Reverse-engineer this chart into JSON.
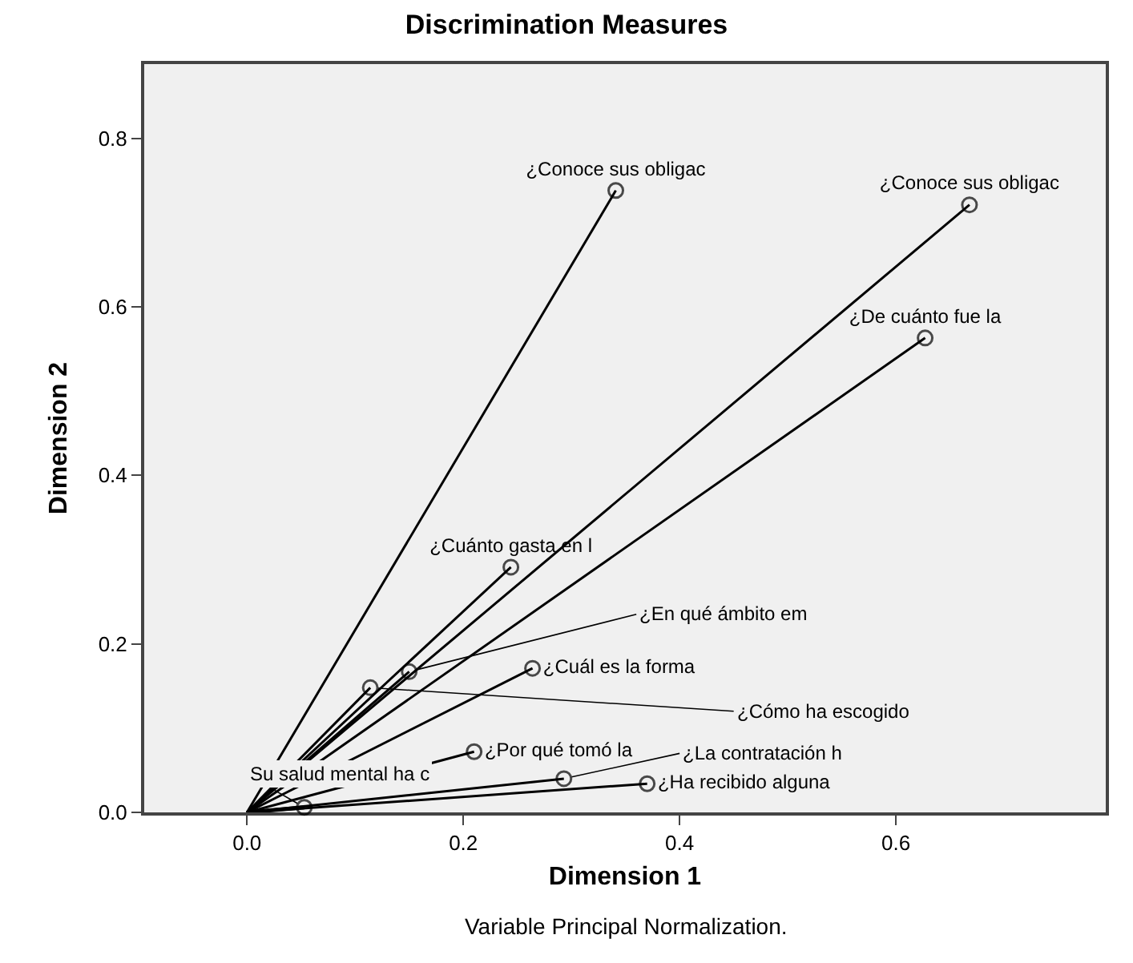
{
  "chart_data": {
    "type": "line",
    "title": "Discrimination Measures",
    "xlabel": "Dimension 1",
    "ylabel": "Dimension 2",
    "annotations": [
      "Variable Principal Normalization."
    ],
    "xlim": [
      -0.095,
      0.794
    ],
    "ylim": [
      0,
      0.888
    ],
    "xticks": [
      {
        "value": 0,
        "label": "0.0"
      },
      0.2,
      0.4,
      0.6
    ],
    "yticks": [
      {
        "value": 0,
        "label": "0.0"
      },
      0.2,
      0.4,
      0.6,
      0.8
    ],
    "grid": false,
    "legend": false,
    "marker": "circle",
    "line_style": "solid",
    "series": [
      {
        "name": "¿Conoce sus obligac",
        "color": "#000000",
        "x": [
          0,
          0.341
        ],
        "values": [
          0,
          0.738
        ]
      },
      {
        "name": "¿Conoce sus obligac",
        "color": "#000000",
        "x": [
          0,
          0.668
        ],
        "values": [
          0,
          0.721
        ]
      },
      {
        "name": "¿De cuánto fue la",
        "color": "#000000",
        "x": [
          0,
          0.627
        ],
        "values": [
          0,
          0.563
        ]
      },
      {
        "name": "¿Cuánto gasta en l",
        "color": "#000000",
        "x": [
          0,
          0.244
        ],
        "values": [
          0,
          0.291
        ]
      },
      {
        "name": "¿Cuál es la forma",
        "color": "#000000",
        "x": [
          0,
          0.264
        ],
        "values": [
          0,
          0.171
        ]
      },
      {
        "name": "¿En qué ámbito em",
        "color": "#000000",
        "x": [
          0,
          0.15
        ],
        "values": [
          0,
          0.167
        ]
      },
      {
        "name": "¿Cómo ha escogido",
        "color": "#000000",
        "x": [
          0,
          0.114
        ],
        "values": [
          0,
          0.148
        ]
      },
      {
        "name": "¿Por qué tomó la",
        "color": "#000000",
        "x": [
          0,
          0.21
        ],
        "values": [
          0,
          0.072
        ]
      },
      {
        "name": "¿La contratación h",
        "color": "#000000",
        "x": [
          0,
          0.293
        ],
        "values": [
          0,
          0.04
        ]
      },
      {
        "name": "¿Ha recibido alguna",
        "color": "#000000",
        "x": [
          0,
          0.37
        ],
        "values": [
          0,
          0.034
        ]
      },
      {
        "name": "Su salud mental ha c",
        "color": "#000000",
        "x": [
          0,
          0.053
        ],
        "values": [
          0,
          0.006
        ]
      }
    ]
  }
}
